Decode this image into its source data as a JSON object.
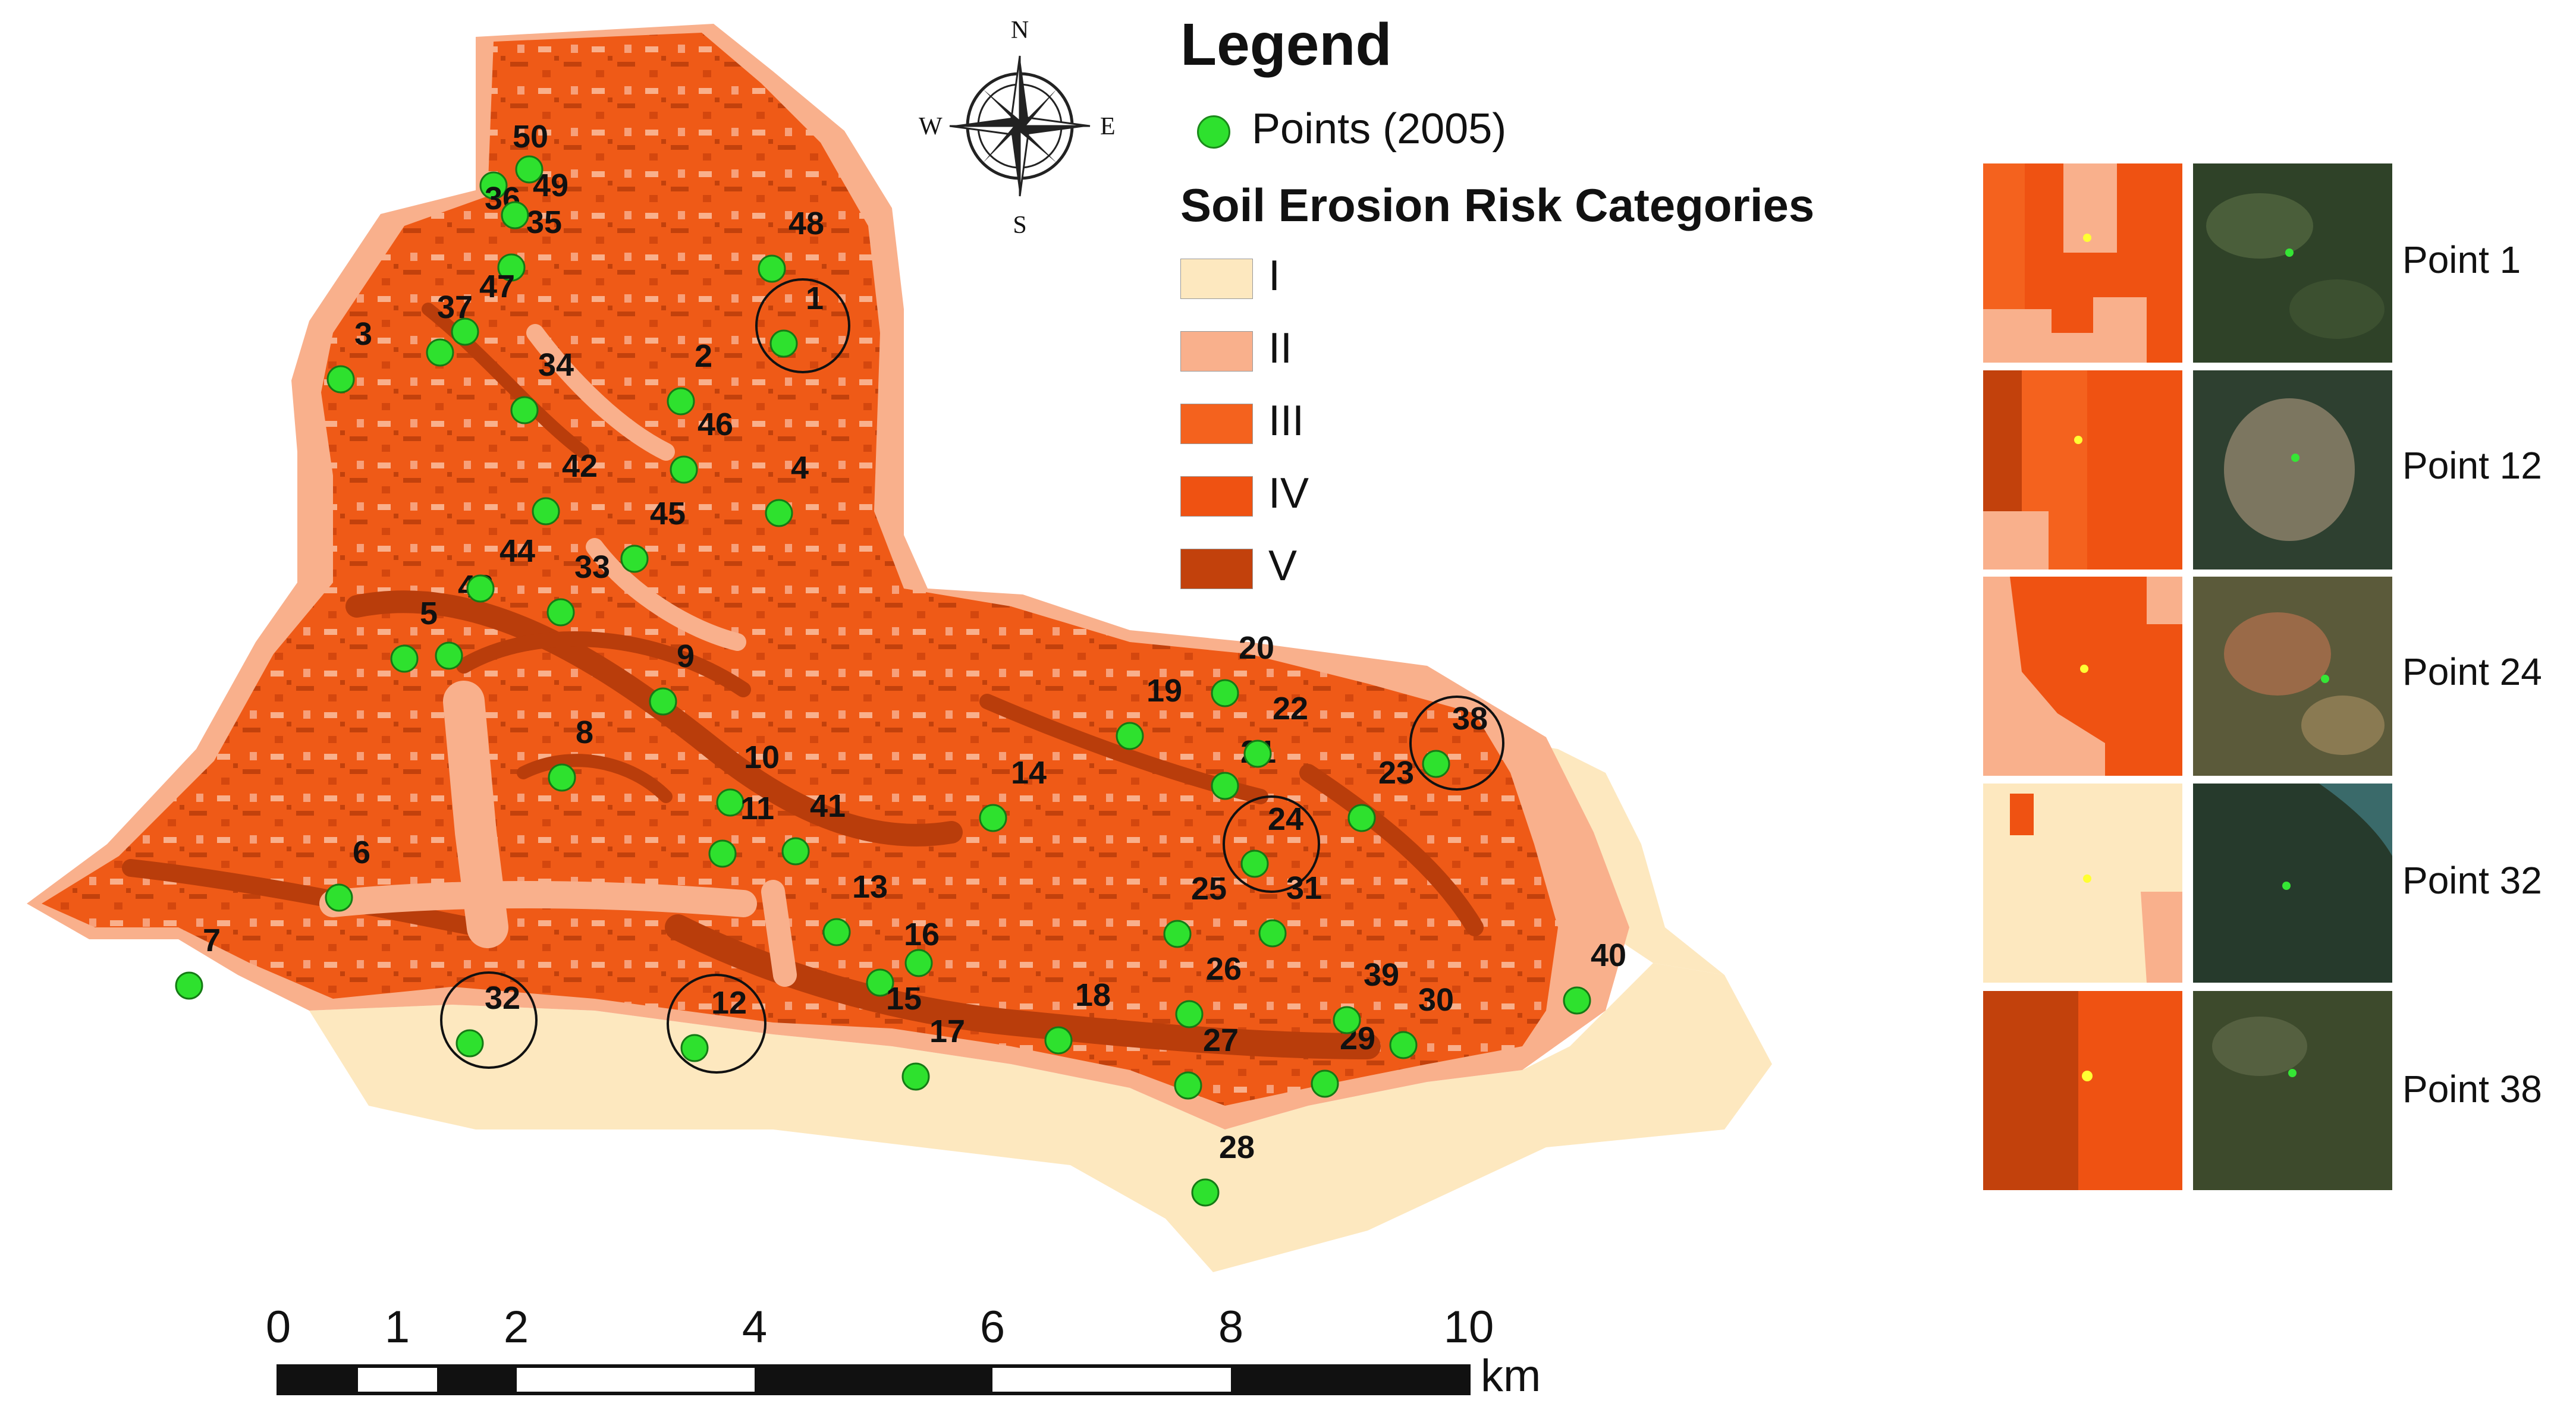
{
  "legend": {
    "title": "Legend",
    "points_label": "Points (2005)",
    "categories_title": "Soil Erosion Risk Categories",
    "categories": [
      {
        "label": "I",
        "color": "#fde8bf"
      },
      {
        "label": "II",
        "color": "#f9b08c"
      },
      {
        "label": "III",
        "color": "#f4621e"
      },
      {
        "label": "IV",
        "color": "#ef5212"
      },
      {
        "label": "V",
        "color": "#c2410c"
      }
    ]
  },
  "compass": {
    "n": "N",
    "s": "S",
    "e": "E",
    "w": "W"
  },
  "scale": {
    "ticks": [
      "0",
      "1",
      "2",
      "4",
      "6",
      "8",
      "10"
    ],
    "unit": "km"
  },
  "points": [
    {
      "id": "1"
    },
    {
      "id": "2"
    },
    {
      "id": "3"
    },
    {
      "id": "4"
    },
    {
      "id": "5"
    },
    {
      "id": "6"
    },
    {
      "id": "7"
    },
    {
      "id": "8"
    },
    {
      "id": "9"
    },
    {
      "id": "10"
    },
    {
      "id": "11"
    },
    {
      "id": "12"
    },
    {
      "id": "13"
    },
    {
      "id": "14"
    },
    {
      "id": "15"
    },
    {
      "id": "16"
    },
    {
      "id": "17"
    },
    {
      "id": "18"
    },
    {
      "id": "19"
    },
    {
      "id": "20"
    },
    {
      "id": "21"
    },
    {
      "id": "22"
    },
    {
      "id": "23"
    },
    {
      "id": "24"
    },
    {
      "id": "25"
    },
    {
      "id": "26"
    },
    {
      "id": "27"
    },
    {
      "id": "28"
    },
    {
      "id": "29"
    },
    {
      "id": "30"
    },
    {
      "id": "31"
    },
    {
      "id": "32"
    },
    {
      "id": "33"
    },
    {
      "id": "34"
    },
    {
      "id": "35"
    },
    {
      "id": "36"
    },
    {
      "id": "37"
    },
    {
      "id": "38"
    },
    {
      "id": "39"
    },
    {
      "id": "40"
    },
    {
      "id": "41"
    },
    {
      "id": "42"
    },
    {
      "id": "43"
    },
    {
      "id": "44"
    },
    {
      "id": "45"
    },
    {
      "id": "46"
    },
    {
      "id": "47"
    },
    {
      "id": "48"
    },
    {
      "id": "49"
    },
    {
      "id": "50"
    }
  ],
  "highlighted_points": [
    "1",
    "12",
    "24",
    "32",
    "38"
  ],
  "insets": [
    {
      "label": "Point 1"
    },
    {
      "label": "Point 12"
    },
    {
      "label": "Point 24"
    },
    {
      "label": "Point 32"
    },
    {
      "label": "Point 38"
    }
  ]
}
